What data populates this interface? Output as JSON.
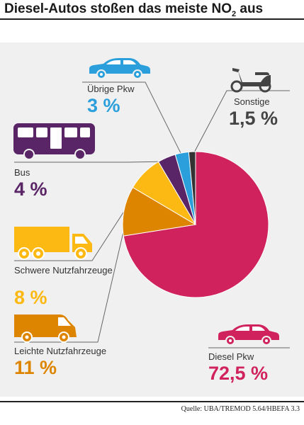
{
  "header": {
    "title_main": "Diesel-Autos stoßen das meiste NO",
    "title_sub": "2",
    "title_end": " aus"
  },
  "source": "Quelle: UBA/TREMOD 5.64/HBEFA 3.3",
  "chart_data": {
    "type": "pie",
    "title": "Diesel-Autos stoßen das meiste NO2 aus",
    "slices": [
      {
        "label": "Diesel Pkw",
        "value": 72.5,
        "value_label": "72,5 %",
        "color": "#d0235d",
        "icon": "car-icon"
      },
      {
        "label": "Leichte Nutzfahrzeuge",
        "value": 11,
        "value_label": "11 %",
        "color": "#dd8500",
        "icon": "van-icon"
      },
      {
        "label": "Schwere Nutzfahrzeuge",
        "value": 8,
        "value_label": "8 %",
        "color": "#fdb913",
        "icon": "truck-icon"
      },
      {
        "label": "Bus",
        "value": 4,
        "value_label": "4 %",
        "color": "#5a2566",
        "icon": "bus-icon"
      },
      {
        "label": "Übrige Pkw",
        "value": 3,
        "value_label": "3 %",
        "color": "#2a9fdb",
        "icon": "car-icon"
      },
      {
        "label": "Sonstige",
        "value": 1.5,
        "value_label": "1,5 %",
        "color": "#333333",
        "icon": "scooter-icon"
      }
    ]
  }
}
